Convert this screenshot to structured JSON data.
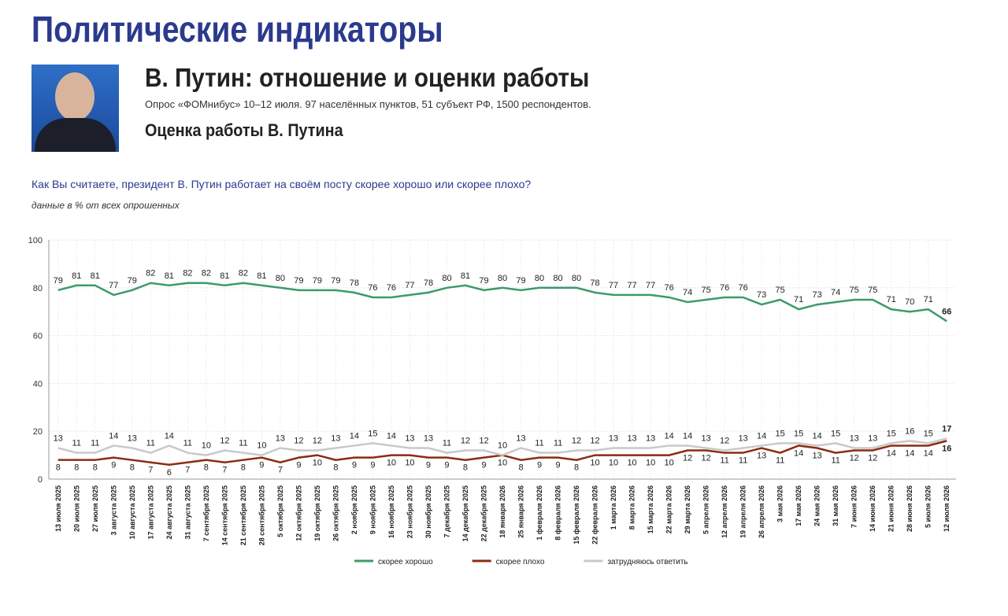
{
  "header": {
    "title": "Политические индикаторы",
    "subtitle": "В. Путин: отношение и оценки работы",
    "survey": "Опрос «ФОМнибус» 10–12 июля. 97 населённых пунктов, 51 субъект РФ, 1500 респондентов.",
    "section": "Оценка работы В. Путина"
  },
  "chart_data": {
    "type": "line",
    "title": "Как Вы считаете, президент В. Путин работает на своём посту скорее хорошо или скорее плохо?",
    "subtitle": "данные в % от всех опрошенных",
    "categories": [
      "13 июля 2025",
      "20 июля 2025",
      "27 июля 2025",
      "3 августа 2025",
      "10 августа 2025",
      "17 августа 2025",
      "24 августа 2025",
      "31 августа 2025",
      "7 сентября 2025",
      "14 сентября 2025",
      "21 сентября 2025",
      "28 сентября 2025",
      "5 октября 2025",
      "12 октября 2025",
      "19 октября 2025",
      "26 октября 2025",
      "2 ноября 2025",
      "9 ноября 2025",
      "16 ноября 2025",
      "23 ноября 2025",
      "30 ноября 2025",
      "7 декабря 2025",
      "14 декабря 2025",
      "22 декабря 2025",
      "18 января 2026",
      "25 января 2026",
      "1 февраля 2026",
      "8 февраля 2026",
      "15 февраля 2026",
      "22 февраля 2026",
      "1 марта 2026",
      "8 марта 2026",
      "15 марта 2026",
      "22 марта 2026",
      "29 марта 2026",
      "5 апреля 2026",
      "12 апреля 2026",
      "19 апреля 2026",
      "26 апреля 2026",
      "3 мая 2026",
      "17 мая 2026",
      "24 мая 2026",
      "31 мая 2026",
      "7 июня 2026",
      "14 июня 2026",
      "21 июня 2026",
      "28 июня 2026",
      "5 июля 2026",
      "12 июля 2026"
    ],
    "series": [
      {
        "name": "скорее хорошо",
        "color": "#3d9a6b",
        "values": [
          79,
          81,
          81,
          77,
          79,
          82,
          81,
          82,
          82,
          81,
          82,
          81,
          80,
          79,
          79,
          79,
          78,
          76,
          76,
          77,
          78,
          80,
          81,
          79,
          80,
          79,
          80,
          80,
          80,
          78,
          77,
          77,
          77,
          76,
          74,
          75,
          76,
          76,
          73,
          75,
          71,
          73,
          74,
          75,
          75,
          71,
          70,
          71,
          66
        ]
      },
      {
        "name": "скорее плохо",
        "color": "#8b2c12",
        "values": [
          8,
          8,
          8,
          9,
          8,
          7,
          6,
          7,
          8,
          7,
          8,
          9,
          7,
          9,
          10,
          8,
          9,
          9,
          10,
          10,
          9,
          9,
          8,
          9,
          10,
          8,
          9,
          9,
          8,
          10,
          10,
          10,
          10,
          10,
          12,
          12,
          11,
          11,
          13,
          11,
          14,
          13,
          11,
          12,
          12,
          14,
          14,
          14,
          16
        ]
      },
      {
        "name": "затрудняюсь ответить",
        "color": "#c9c9c9",
        "values": [
          13,
          11,
          11,
          14,
          13,
          11,
          14,
          11,
          10,
          12,
          11,
          10,
          13,
          12,
          12,
          13,
          14,
          15,
          14,
          13,
          13,
          11,
          12,
          12,
          10,
          13,
          11,
          11,
          12,
          12,
          13,
          13,
          13,
          14,
          14,
          13,
          12,
          13,
          14,
          15,
          15,
          14,
          15,
          13,
          13,
          15,
          16,
          15,
          17
        ]
      }
    ],
    "ylim": [
      0,
      100
    ],
    "yticks": [
      0,
      20,
      40,
      60,
      80,
      100
    ],
    "grid": true
  }
}
